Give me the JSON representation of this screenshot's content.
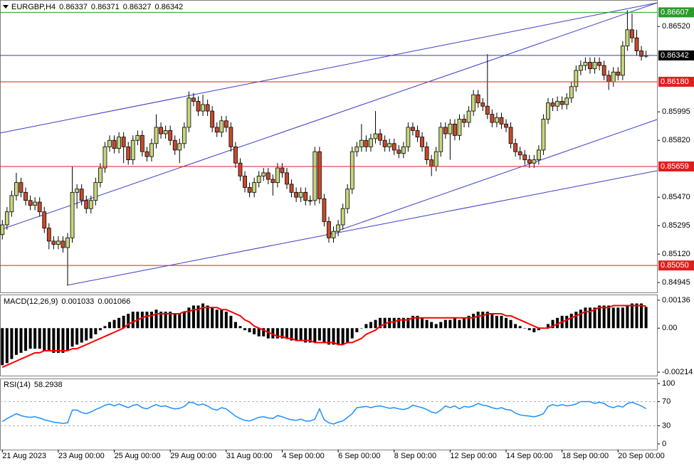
{
  "chart_data": [
    {
      "type": "candlestick",
      "title": "EURGBP,H4",
      "xlim": [
        -0.5,
        140.5
      ],
      "ylim": [
        0.8488,
        0.86683
      ],
      "yticks": [
        {
          "value": 0.8652,
          "label": "0.86520"
        },
        0.85995,
        {
          "value": 0.8582,
          "label": "0.85820"
        },
        {
          "value": 0.8547,
          "label": "0.85470"
        },
        0.85295,
        {
          "value": 0.8512,
          "label": "0.85120"
        },
        0.84945
      ],
      "up_color": "#c5d77c",
      "down_color": "#c84a2c",
      "last_color": "#3c3ca8",
      "levels": [
        {
          "value": 0.86607,
          "color": "#2a9a2a"
        },
        {
          "value": 0.8618,
          "label": "0.86180",
          "color": "#e01e1e"
        },
        {
          "value": 0.85659,
          "color": "#e01e1e"
        },
        {
          "value": 0.8505,
          "label": "0.85050",
          "color": "#e01e1e"
        }
      ],
      "open": [
        0.8524,
        0.853,
        0.8538,
        0.8548,
        0.8556,
        0.855,
        0.8545,
        0.8542,
        0.8544,
        0.8538,
        0.8528,
        0.852,
        0.8518,
        0.852,
        0.8516,
        0.8522,
        0.855,
        0.8552,
        0.8545,
        0.854,
        0.8545,
        0.8556,
        0.8565,
        0.8578,
        0.8582,
        0.8577,
        0.8584,
        0.8578,
        0.857,
        0.8582,
        0.8585,
        0.8575,
        0.8572,
        0.858,
        0.859,
        0.8586,
        0.8588,
        0.8582,
        0.8576,
        0.858,
        0.859,
        0.8608,
        0.8606,
        0.86,
        0.8604,
        0.86,
        0.859,
        0.8587,
        0.8594,
        0.859,
        0.8578,
        0.8568,
        0.856,
        0.8553,
        0.855,
        0.8556,
        0.856,
        0.8562,
        0.8558,
        0.8556,
        0.8565,
        0.8562,
        0.8555,
        0.855,
        0.8547,
        0.855,
        0.8545,
        0.8545,
        0.8575,
        0.8546,
        0.8532,
        0.8522,
        0.8526,
        0.853,
        0.854,
        0.8552,
        0.8575,
        0.8578,
        0.8582,
        0.8578,
        0.8583,
        0.8586,
        0.8582,
        0.8578,
        0.858,
        0.8576,
        0.8574,
        0.8578,
        0.859,
        0.8588,
        0.8584,
        0.8578,
        0.857,
        0.8566,
        0.8575,
        0.859,
        0.8586,
        0.8592,
        0.8585,
        0.8595,
        0.8593,
        0.86,
        0.861,
        0.8605,
        0.8603,
        0.8598,
        0.8593,
        0.8596,
        0.8592,
        0.859,
        0.858,
        0.8575,
        0.8573,
        0.857,
        0.8568,
        0.857,
        0.8576,
        0.8595,
        0.8605,
        0.8603,
        0.8606,
        0.8604,
        0.8608,
        0.8615,
        0.8625,
        0.8628,
        0.863,
        0.8626,
        0.863,
        0.8628,
        0.8622,
        0.8618,
        0.8624,
        0.8622,
        0.864,
        0.865,
        0.8645,
        0.8637,
        0.86337
      ],
      "high": [
        0.8533,
        0.8541,
        0.8551,
        0.8562,
        0.8559,
        0.8553,
        0.8548,
        0.8547,
        0.8547,
        0.8541,
        0.8531,
        0.8523,
        0.8523,
        0.8523,
        0.8525,
        0.8566,
        0.8555,
        0.8555,
        0.8548,
        0.8548,
        0.8559,
        0.8568,
        0.8581,
        0.8585,
        0.8585,
        0.8587,
        0.8587,
        0.8581,
        0.8585,
        0.8588,
        0.8588,
        0.8578,
        0.8583,
        0.8598,
        0.8593,
        0.8591,
        0.8591,
        0.8585,
        0.8583,
        0.8593,
        0.8612,
        0.8611,
        0.8609,
        0.861,
        0.8607,
        0.8603,
        0.8593,
        0.8597,
        0.8597,
        0.8593,
        0.8581,
        0.8571,
        0.8563,
        0.8556,
        0.8559,
        0.8563,
        0.8565,
        0.8565,
        0.8561,
        0.8568,
        0.8568,
        0.8565,
        0.8558,
        0.8553,
        0.8553,
        0.8553,
        0.8548,
        0.8578,
        0.8578,
        0.8549,
        0.8535,
        0.8529,
        0.8533,
        0.8543,
        0.8555,
        0.8578,
        0.8581,
        0.8592,
        0.8585,
        0.8586,
        0.86,
        0.8589,
        0.8585,
        0.8583,
        0.8583,
        0.8579,
        0.8581,
        0.8593,
        0.8593,
        0.8591,
        0.8587,
        0.8581,
        0.8573,
        0.8578,
        0.8593,
        0.8593,
        0.8595,
        0.8595,
        0.8598,
        0.8598,
        0.8603,
        0.8613,
        0.8613,
        0.8608,
        0.8635,
        0.8601,
        0.8599,
        0.8599,
        0.8595,
        0.8593,
        0.8583,
        0.8578,
        0.8576,
        0.8573,
        0.8573,
        0.8579,
        0.8598,
        0.8608,
        0.8608,
        0.8609,
        0.8609,
        0.8611,
        0.8618,
        0.8628,
        0.8631,
        0.8633,
        0.8633,
        0.8633,
        0.8633,
        0.8631,
        0.8625,
        0.8627,
        0.8627,
        0.8643,
        0.8662,
        0.866,
        0.865,
        0.864,
        0.86371
      ],
      "low": [
        0.8521,
        0.8527,
        0.8535,
        0.8545,
        0.8547,
        0.8542,
        0.8539,
        0.8539,
        0.8535,
        0.8525,
        0.8515,
        0.8515,
        0.8515,
        0.8513,
        0.8493,
        0.8519,
        0.854,
        0.8542,
        0.8537,
        0.8537,
        0.8542,
        0.8553,
        0.8562,
        0.8575,
        0.8574,
        0.8574,
        0.8568,
        0.8567,
        0.8567,
        0.8579,
        0.8572,
        0.8569,
        0.8569,
        0.8577,
        0.8583,
        0.8583,
        0.8579,
        0.8573,
        0.8568,
        0.8577,
        0.8587,
        0.8603,
        0.8597,
        0.8597,
        0.8597,
        0.8587,
        0.8584,
        0.8584,
        0.8587,
        0.8575,
        0.8565,
        0.8557,
        0.855,
        0.8547,
        0.8547,
        0.8553,
        0.8557,
        0.8555,
        0.8548,
        0.8553,
        0.8559,
        0.8552,
        0.8547,
        0.8544,
        0.8544,
        0.8542,
        0.8542,
        0.8542,
        0.8543,
        0.8529,
        0.8519,
        0.8519,
        0.8523,
        0.8527,
        0.8537,
        0.8549,
        0.8572,
        0.8575,
        0.8575,
        0.8575,
        0.858,
        0.8579,
        0.8575,
        0.8575,
        0.8573,
        0.8571,
        0.8571,
        0.8575,
        0.8585,
        0.8581,
        0.8575,
        0.8567,
        0.856,
        0.8563,
        0.8572,
        0.8583,
        0.857,
        0.8582,
        0.8582,
        0.859,
        0.859,
        0.8597,
        0.8602,
        0.86,
        0.8595,
        0.859,
        0.859,
        0.8589,
        0.8587,
        0.8577,
        0.8572,
        0.857,
        0.8567,
        0.8565,
        0.8565,
        0.8567,
        0.8573,
        0.8592,
        0.86,
        0.86,
        0.8601,
        0.8601,
        0.8605,
        0.8612,
        0.8622,
        0.8625,
        0.8623,
        0.8623,
        0.8625,
        0.8619,
        0.8613,
        0.8615,
        0.8619,
        0.8619,
        0.8637,
        0.8642,
        0.8634,
        0.8631,
        0.86327
      ],
      "close": [
        0.853,
        0.8538,
        0.8548,
        0.8556,
        0.855,
        0.8545,
        0.8542,
        0.8544,
        0.8538,
        0.8528,
        0.852,
        0.8518,
        0.852,
        0.8516,
        0.8522,
        0.855,
        0.8552,
        0.8545,
        0.854,
        0.8545,
        0.8556,
        0.8565,
        0.8578,
        0.8582,
        0.8577,
        0.8584,
        0.8578,
        0.857,
        0.8582,
        0.8585,
        0.8575,
        0.8572,
        0.858,
        0.859,
        0.8586,
        0.8588,
        0.8582,
        0.8576,
        0.858,
        0.859,
        0.8608,
        0.8606,
        0.86,
        0.8604,
        0.86,
        0.859,
        0.8587,
        0.8594,
        0.859,
        0.8578,
        0.8568,
        0.856,
        0.8553,
        0.855,
        0.8556,
        0.856,
        0.8562,
        0.8558,
        0.8556,
        0.8565,
        0.8562,
        0.8555,
        0.855,
        0.8547,
        0.855,
        0.8545,
        0.8545,
        0.8575,
        0.8546,
        0.8532,
        0.8522,
        0.8526,
        0.853,
        0.854,
        0.8552,
        0.8575,
        0.8578,
        0.8582,
        0.8578,
        0.8583,
        0.8586,
        0.8582,
        0.8578,
        0.858,
        0.8576,
        0.8574,
        0.8578,
        0.859,
        0.8588,
        0.8584,
        0.8578,
        0.857,
        0.8566,
        0.8575,
        0.859,
        0.8586,
        0.8592,
        0.8585,
        0.8595,
        0.8593,
        0.86,
        0.861,
        0.8605,
        0.8603,
        0.8598,
        0.8593,
        0.8596,
        0.8592,
        0.859,
        0.858,
        0.8575,
        0.8573,
        0.857,
        0.8568,
        0.857,
        0.8576,
        0.8595,
        0.8605,
        0.8603,
        0.8606,
        0.8604,
        0.8608,
        0.8615,
        0.8625,
        0.8628,
        0.863,
        0.8626,
        0.863,
        0.8628,
        0.8622,
        0.8618,
        0.8624,
        0.8622,
        0.864,
        0.865,
        0.8645,
        0.8637,
        0.86337,
        0.86342
      ]
    },
    {
      "type": "bar",
      "title": "MACD(12,26,9)",
      "ylim": [
        -0.00231,
        0.0016
      ],
      "yticks": [
        0.00136,
        {
          "value": 0,
          "label": "0.00"
        },
        -0.00214
      ],
      "series": [
        {
          "color": "#000000",
          "values": [
            -0.0018,
            -0.0017,
            -0.0015,
            -0.0013,
            -0.0012,
            -0.0011,
            -0.001,
            -0.001,
            -0.001,
            -0.0011,
            -0.0011,
            -0.0012,
            -0.0012,
            -0.0012,
            -0.0011,
            -0.0009,
            -0.0008,
            -0.0007,
            -0.0006,
            -0.0005,
            -0.0003,
            -0.0001,
            0.0001,
            0.0003,
            0.0004,
            0.0005,
            0.0006,
            0.0007,
            0.0008,
            0.0008,
            0.0008,
            0.0008,
            0.0008,
            0.0009,
            0.0008,
            0.0008,
            0.0008,
            0.0007,
            0.0007,
            0.0008,
            0.001,
            0.0011,
            0.0011,
            0.0012,
            0.0011,
            0.001,
            0.0009,
            0.0009,
            0.0008,
            0.0006,
            0.0003,
            0.0001,
            -0.0001,
            -0.0002,
            -0.0003,
            -0.0004,
            -0.0004,
            -0.0005,
            -0.0005,
            -0.0005,
            -0.0005,
            -0.0005,
            -0.0006,
            -0.0006,
            -0.0006,
            -0.0007,
            -0.0007,
            -0.0007,
            -0.0006,
            -0.0007,
            -0.0008,
            -0.0008,
            -0.0008,
            -0.0008,
            -0.0007,
            -0.0005,
            -0.0002,
            0,
            0.0002,
            0.0003,
            0.0004,
            0.0005,
            0.0005,
            0.0005,
            0.0005,
            0.0005,
            0.0005,
            0.0005,
            0.0006,
            0.0006,
            0.0005,
            0.0004,
            0.0003,
            0.0002,
            0.0003,
            0.0004,
            0.0004,
            0.0005,
            0.0004,
            0.0005,
            0.0006,
            0.0007,
            0.0008,
            0.0008,
            0.0008,
            0.0007,
            0.0006,
            0.0006,
            0.0005,
            0.0004,
            0.0002,
            0.0001,
            0,
            -0.0001,
            -0.0002,
            -0.0001,
            0,
            0.0002,
            0.0004,
            0.0005,
            0.0006,
            0.0006,
            0.0007,
            0.0008,
            0.0009,
            0.001,
            0.001,
            0.001,
            0.0011,
            0.0011,
            0.0011,
            0.001,
            0.001,
            0.001,
            0.0011,
            0.0012,
            0.0012,
            0.0012,
            0.001033
          ]
        },
        {
          "type": "line",
          "color": "#ff0000",
          "values": [
            -0.0019,
            -0.0018,
            -0.0017,
            -0.0016,
            -0.0015,
            -0.0014,
            -0.0013,
            -0.0012,
            -0.0012,
            -0.0011,
            -0.0011,
            -0.0011,
            -0.0011,
            -0.0011,
            -0.0011,
            -0.001,
            -0.001,
            -0.0009,
            -0.0008,
            -0.0007,
            -0.0006,
            -0.0005,
            -0.0004,
            -0.0003,
            -0.0002,
            -0.0001,
            0,
            0.0002,
            0.0003,
            0.0004,
            0.0005,
            0.0006,
            0.0006,
            0.0007,
            0.0007,
            0.0007,
            0.0007,
            0.0007,
            0.0007,
            0.0008,
            0.0008,
            0.0009,
            0.0009,
            0.001,
            0.001,
            0.001,
            0.001,
            0.0009,
            0.0009,
            0.0008,
            0.0007,
            0.0006,
            0.0004,
            0.0003,
            0.0001,
            0,
            -0.0001,
            -0.0002,
            -0.0003,
            -0.0004,
            -0.0004,
            -0.0005,
            -0.0005,
            -0.0006,
            -0.0006,
            -0.0006,
            -0.0006,
            -0.0007,
            -0.0007,
            -0.0007,
            -0.0007,
            -0.0007,
            -0.0008,
            -0.0008,
            -0.0007,
            -0.0007,
            -0.0006,
            -0.0005,
            -0.0003,
            -0.0002,
            -0.0001,
            0.0001,
            0.0002,
            0.0003,
            0.0003,
            0.0004,
            0.0004,
            0.0004,
            0.0005,
            0.0005,
            0.0005,
            0.0005,
            0.0005,
            0.0005,
            0.0005,
            0.0005,
            0.0005,
            0.0005,
            0.0005,
            0.0005,
            0.0005,
            0.0005,
            0.0006,
            0.0006,
            0.0007,
            0.0007,
            0.0007,
            0.0007,
            0.0006,
            0.0006,
            0.0005,
            0.0004,
            0.0003,
            0.0002,
            0.0001,
            0,
            0,
            0,
            0.0001,
            0.0002,
            0.0003,
            0.0004,
            0.0005,
            0.0006,
            0.0007,
            0.0008,
            0.0008,
            0.0009,
            0.001,
            0.001,
            0.001,
            0.0011,
            0.0011,
            0.0011,
            0.0011,
            0.0011,
            0.0011,
            0.0011,
            0.001066
          ]
        }
      ]
    },
    {
      "type": "line",
      "title": "RSI(14)",
      "color": "#1e90ff",
      "ylim": [
        -9.4,
        107.1
      ],
      "yticks": [
        100,
        70,
        30,
        0
      ],
      "levels": [
        70,
        30
      ],
      "values": [
        37,
        42,
        46,
        50,
        47,
        45,
        44,
        45,
        43,
        40,
        38,
        36,
        35,
        34,
        35,
        56,
        56,
        52,
        50,
        53,
        57,
        60,
        64,
        66,
        63,
        66,
        63,
        60,
        64,
        65,
        60,
        58,
        62,
        65,
        62,
        63,
        60,
        58,
        59,
        62,
        69,
        68,
        64,
        66,
        63,
        58,
        56,
        60,
        58,
        52,
        46,
        42,
        39,
        38,
        41,
        44,
        45,
        43,
        42,
        47,
        45,
        42,
        40,
        39,
        41,
        38,
        38,
        41,
        58,
        40,
        35,
        33,
        36,
        38,
        44,
        50,
        60,
        61,
        62,
        60,
        62,
        63,
        61,
        59,
        60,
        58,
        57,
        59,
        64,
        62,
        60,
        57,
        53,
        51,
        56,
        63,
        60,
        63,
        58,
        62,
        61,
        63,
        67,
        64,
        63,
        60,
        58,
        60,
        57,
        56,
        51,
        48,
        47,
        46,
        45,
        47,
        50,
        62,
        65,
        63,
        65,
        63,
        64,
        66,
        70,
        70,
        70,
        67,
        69,
        67,
        62,
        60,
        63,
        61,
        67,
        69,
        66,
        63,
        58.2938
      ],
      "xticks": [
        {
          "value": 0,
          "label": "21 Aug 2023"
        },
        {
          "value": 12,
          "label": "23 Aug 00:00"
        },
        {
          "value": 24,
          "label": "25 Aug 00:00"
        },
        {
          "value": 36,
          "label": "29 Aug 00:00"
        },
        {
          "value": 48,
          "label": "31 Aug 00:00"
        },
        {
          "value": 60,
          "label": "4 Sep 00:00"
        },
        {
          "value": 72,
          "label": "6 Sep 00:00"
        },
        {
          "value": 84,
          "label": "8 Sep 00:00"
        },
        {
          "value": 96,
          "label": "12 Sep 00:00"
        },
        {
          "value": 108,
          "label": "14 Sep 00:00"
        },
        {
          "value": 120,
          "label": "18 Sep 00:00"
        },
        {
          "value": 132,
          "label": "20 Sep 00:00"
        }
      ]
    }
  ]
}
